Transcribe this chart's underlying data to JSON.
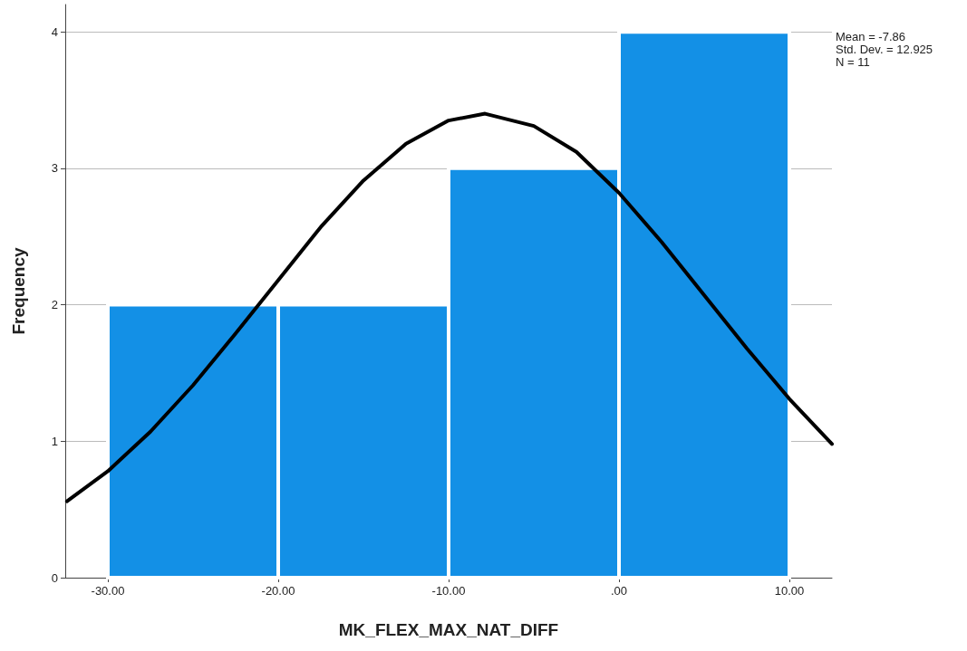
{
  "chart_data": {
    "type": "histogram",
    "xlabel": "MK_FLEX_MAX_NAT_DIFF",
    "ylabel": "Frequency",
    "annotations": [
      "Mean = -7.86",
      "Std. Dev. = 12.925",
      "N = 11"
    ],
    "bins": [
      -30,
      -20,
      -10,
      0,
      10
    ],
    "series": [
      {
        "color": "#1390e6",
        "values": [
          2,
          2,
          3,
          4
        ]
      },
      {
        "type": "line",
        "color": "#000000",
        "x": [
          -32.4,
          -30,
          -27.5,
          -25,
          -22.5,
          -20,
          -17.5,
          -15,
          -12.5,
          -10,
          -7.86,
          -5,
          -2.5,
          0,
          2.5,
          5,
          7.5,
          10,
          12.5
        ],
        "values": [
          0.56,
          0.78,
          1.07,
          1.41,
          1.79,
          2.18,
          2.57,
          2.91,
          3.18,
          3.35,
          3.4,
          3.31,
          3.12,
          2.82,
          2.46,
          2.07,
          1.68,
          1.31,
          0.98
        ]
      }
    ],
    "marker": "none",
    "line_style": "solid",
    "xlim": [
      -32.5,
      12.5
    ],
    "xticks": [
      {
        "value": -30,
        "label": "-30.00"
      },
      {
        "value": -20,
        "label": "-20.00"
      },
      {
        "value": -10,
        "label": "-10.00"
      },
      {
        "value": 0,
        "label": ".00"
      },
      {
        "value": 10,
        "label": "10.00"
      }
    ],
    "ylim": [
      0,
      4.2
    ],
    "yticks": [
      0,
      1,
      2,
      3,
      4
    ],
    "grid": "y"
  }
}
